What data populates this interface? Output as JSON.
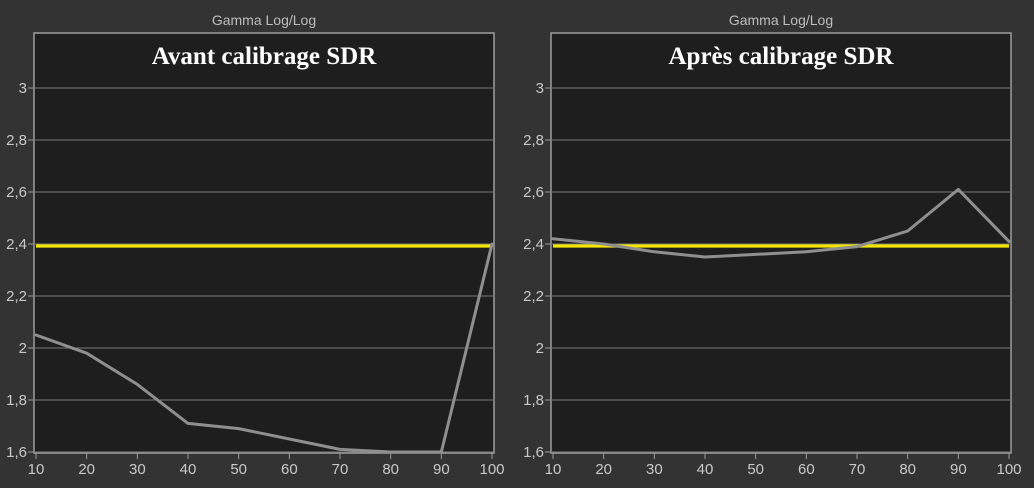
{
  "colors": {
    "page_background": "#333333",
    "plot_background": "#1e1e1e",
    "plot_border": "#9e9e9e",
    "gridline": "#787878",
    "tick_mark": "#9a9a9a",
    "tick_text": "#c9c9c9",
    "header_text": "#bdbdbd",
    "title_text": "#ffffff",
    "reference_line": "#f3e600",
    "measurement_line": "#8f8f8f"
  },
  "chart_data": [
    {
      "type": "line",
      "subtitle": "Gamma Log/Log",
      "title": "Avant calibrage SDR",
      "x": [
        10,
        20,
        30,
        40,
        50,
        60,
        70,
        80,
        90,
        100
      ],
      "xtick_labels": [
        "10",
        "20",
        "30",
        "40",
        "50",
        "60",
        "70",
        "80",
        "90",
        "100"
      ],
      "yticks": [
        3.0,
        2.8,
        2.6,
        2.4,
        2.2,
        2.0,
        1.8,
        1.6
      ],
      "ytick_labels": [
        "3",
        "2,8",
        "2,6",
        "2,4",
        "2,2",
        "2",
        "1,8",
        "1,6"
      ],
      "xlim": [
        10,
        100
      ],
      "ylim": [
        1.6,
        3.21
      ],
      "grid": true,
      "legend": "none",
      "reference_line": {
        "name": "gamma-target",
        "value": 2.4
      },
      "series": [
        {
          "name": "measured-gamma",
          "values": [
            2.05,
            1.98,
            1.86,
            1.71,
            1.69,
            1.65,
            1.61,
            1.6,
            1.6,
            2.4
          ]
        }
      ]
    },
    {
      "type": "line",
      "subtitle": "Gamma Log/Log",
      "title": "Après calibrage SDR",
      "x": [
        10,
        20,
        30,
        40,
        50,
        60,
        70,
        80,
        90,
        100
      ],
      "xtick_labels": [
        "10",
        "20",
        "30",
        "40",
        "50",
        "60",
        "70",
        "80",
        "90",
        "100"
      ],
      "yticks": [
        3.0,
        2.8,
        2.6,
        2.4,
        2.2,
        2.0,
        1.8,
        1.6
      ],
      "ytick_labels": [
        "3",
        "2,8",
        "2,6",
        "2,4",
        "2,2",
        "2",
        "1,8",
        "1,6"
      ],
      "xlim": [
        10,
        100
      ],
      "ylim": [
        1.6,
        3.21
      ],
      "grid": true,
      "legend": "none",
      "reference_line": {
        "name": "gamma-target",
        "value": 2.4
      },
      "series": [
        {
          "name": "measured-gamma",
          "values": [
            2.42,
            2.4,
            2.37,
            2.35,
            2.36,
            2.37,
            2.39,
            2.45,
            2.61,
            2.41
          ]
        }
      ]
    }
  ]
}
